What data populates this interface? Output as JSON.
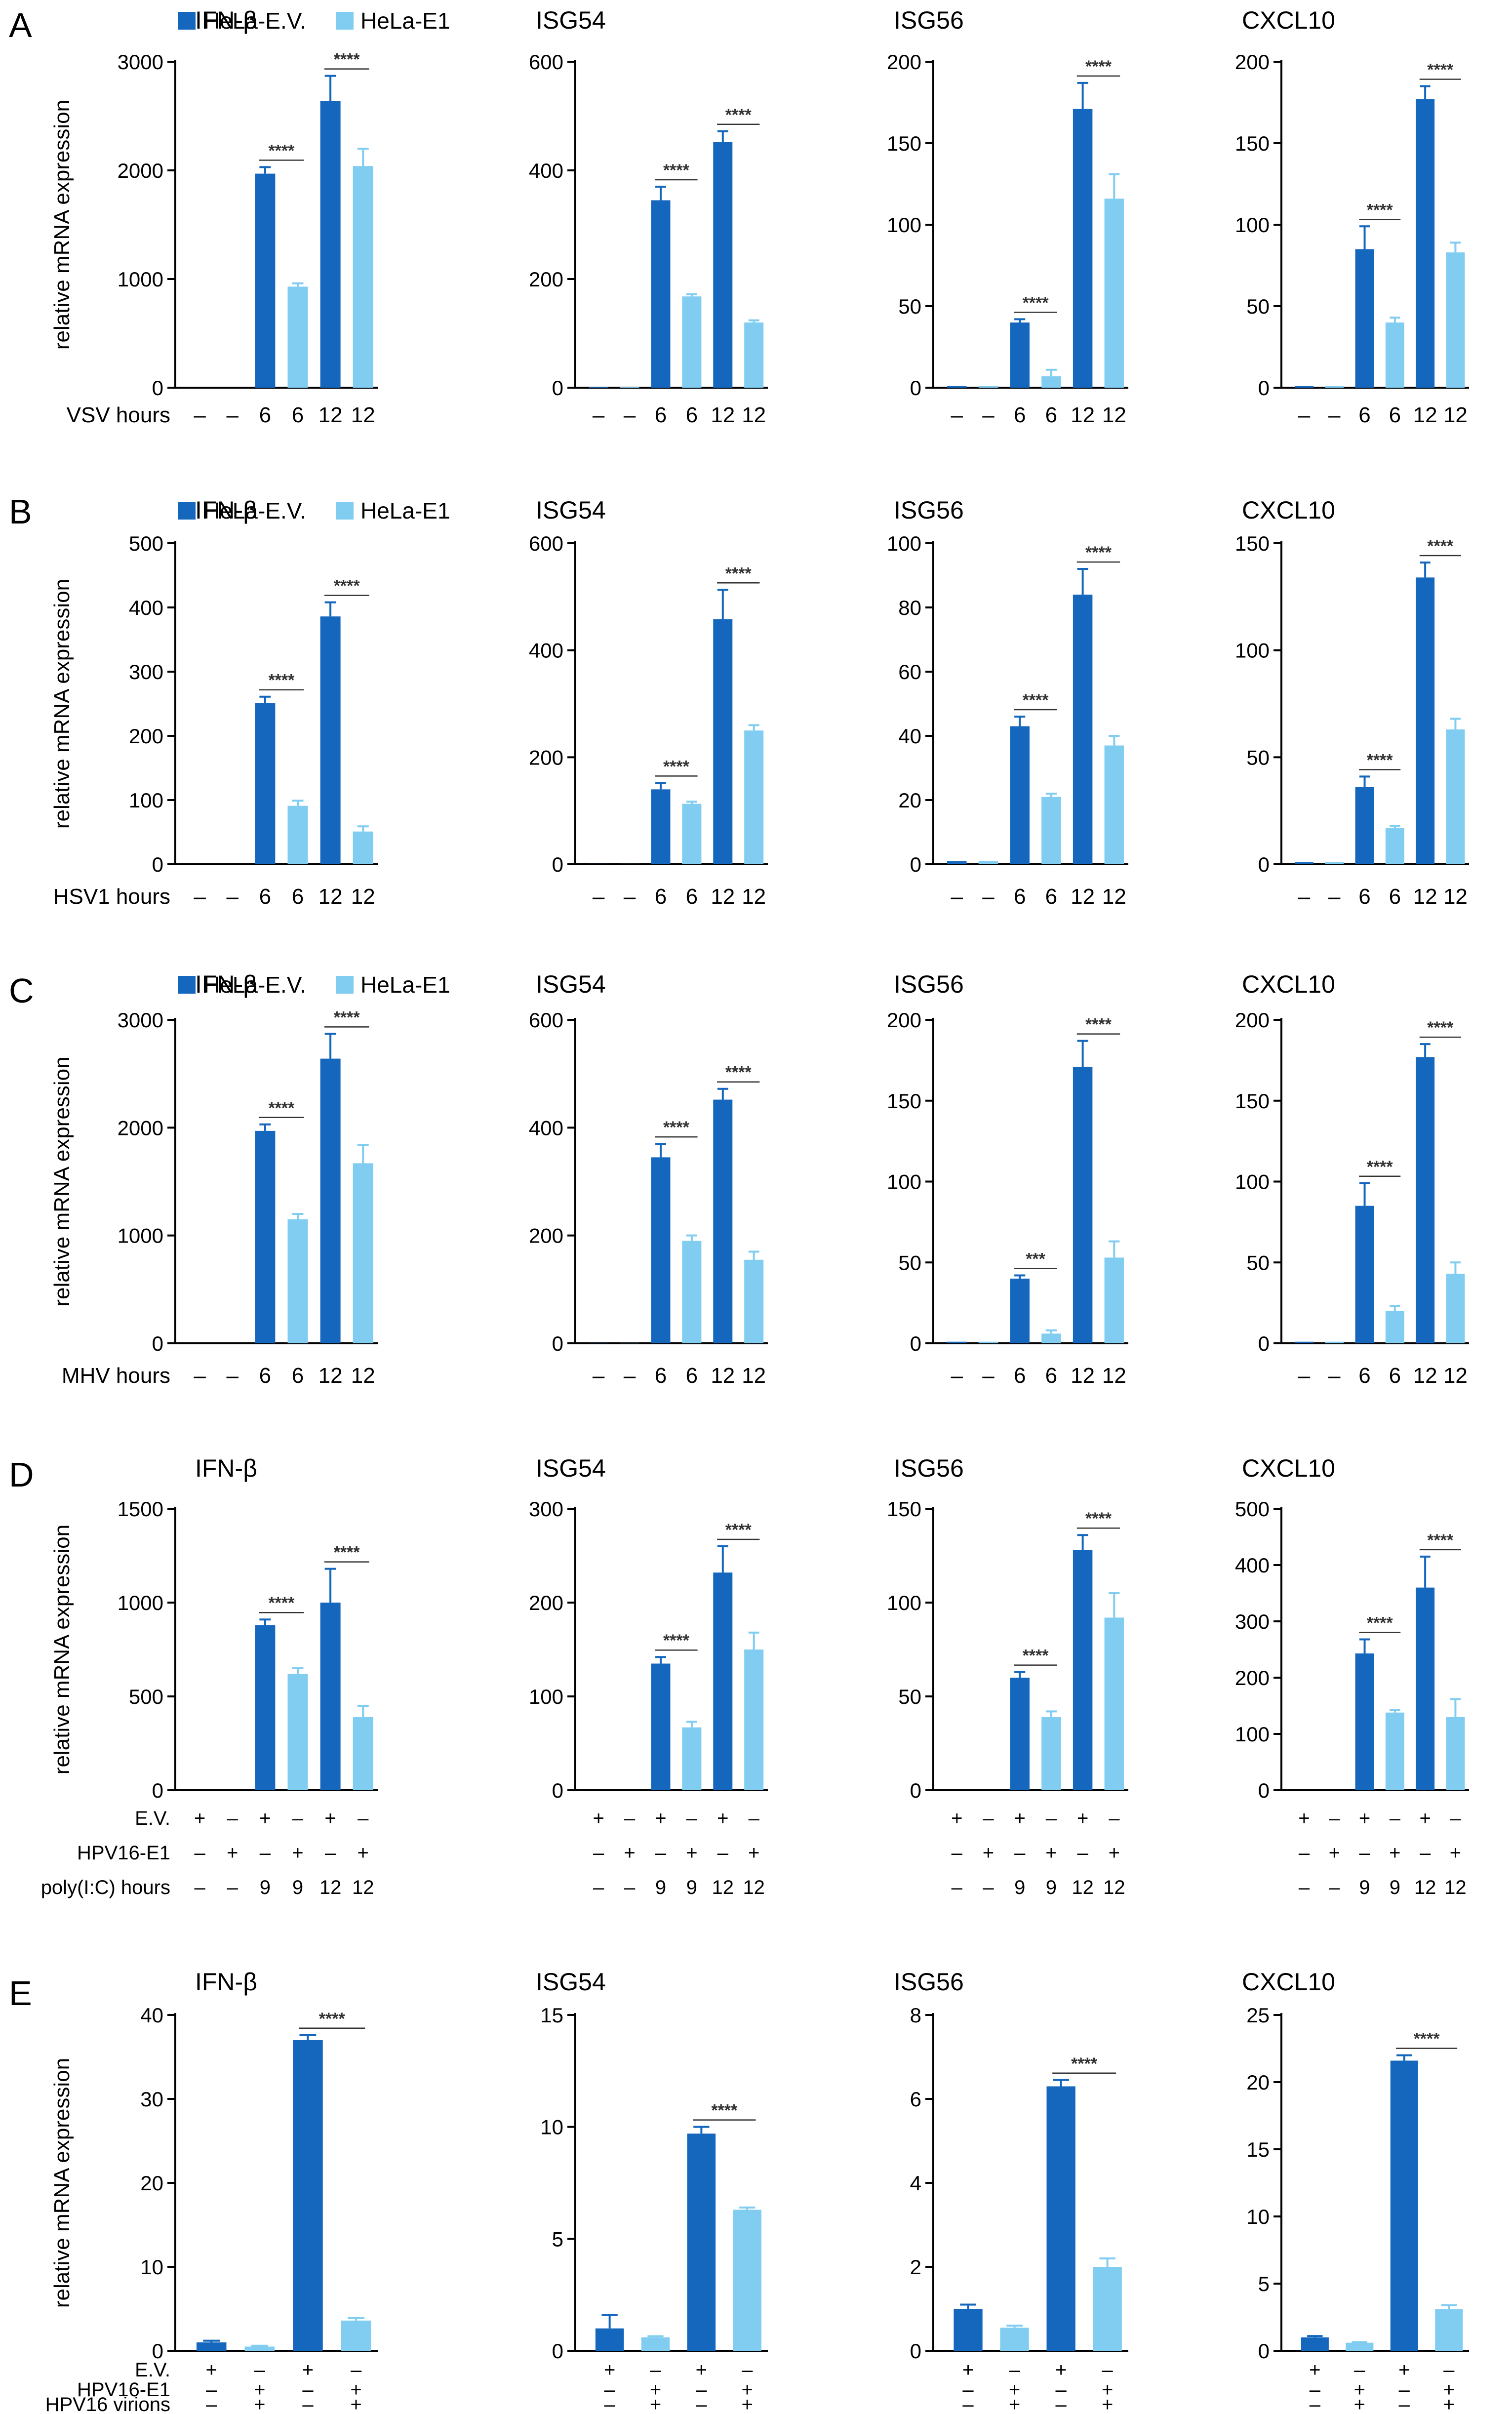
{
  "figure": {
    "legend": {
      "ev": "HeLa-E.V.",
      "e1": "HeLa-E1"
    },
    "y_axis_label": "relative mRNA expression",
    "colors": {
      "ev": "#1467bd",
      "e1": "#81cdf1",
      "axis": "#000000",
      "sig": "#333333"
    }
  },
  "chart_data": [
    {
      "panel": "A",
      "treatment": "VSV hours",
      "cond": [
        "–",
        "–",
        "6",
        "6",
        "12",
        "12"
      ],
      "charts": [
        {
          "type": "bar",
          "title": "IFN-β",
          "ylim": [
            0,
            3000
          ],
          "ticks": [
            0,
            1000,
            2000,
            3000
          ],
          "values": [
            0,
            0,
            1970,
            930,
            2640,
            2040
          ],
          "errors": [
            0,
            0,
            60,
            30,
            230,
            160
          ],
          "sig": [
            {
              "pair": [
                2,
                3
              ],
              "label": "****"
            },
            {
              "pair": [
                4,
                5
              ],
              "label": "****"
            }
          ]
        },
        {
          "type": "bar",
          "title": "ISG54",
          "ylim": [
            0,
            600
          ],
          "ticks": [
            0,
            200,
            400,
            600
          ],
          "values": [
            1,
            1,
            345,
            168,
            452,
            120
          ],
          "errors": [
            0,
            0,
            25,
            4,
            20,
            4
          ],
          "sig": [
            {
              "pair": [
                2,
                3
              ],
              "label": "****"
            },
            {
              "pair": [
                4,
                5
              ],
              "label": "****"
            }
          ]
        },
        {
          "type": "bar",
          "title": "ISG56",
          "ylim": [
            0,
            200
          ],
          "ticks": [
            0,
            50,
            100,
            150,
            200
          ],
          "values": [
            1,
            1,
            40,
            7,
            171,
            116
          ],
          "errors": [
            0,
            0,
            2,
            4,
            16,
            15
          ],
          "sig": [
            {
              "pair": [
                2,
                3
              ],
              "label": "****"
            },
            {
              "pair": [
                4,
                5
              ],
              "label": "****"
            }
          ]
        },
        {
          "type": "bar",
          "title": "CXCL10",
          "ylim": [
            0,
            200
          ],
          "ticks": [
            0,
            50,
            100,
            150,
            200
          ],
          "values": [
            1,
            1,
            85,
            40,
            177,
            83
          ],
          "errors": [
            0,
            0,
            14,
            3,
            8,
            6
          ],
          "sig": [
            {
              "pair": [
                2,
                3
              ],
              "label": "****"
            },
            {
              "pair": [
                4,
                5
              ],
              "label": "****"
            }
          ]
        }
      ]
    },
    {
      "panel": "B",
      "treatment": "HSV1 hours",
      "cond": [
        "–",
        "–",
        "6",
        "6",
        "12",
        "12"
      ],
      "charts": [
        {
          "type": "bar",
          "title": "IFN-β",
          "ylim": [
            0,
            500
          ],
          "ticks": [
            0,
            100,
            200,
            300,
            400,
            500
          ],
          "values": [
            0,
            0,
            251,
            91,
            386,
            51
          ],
          "errors": [
            0,
            0,
            10,
            8,
            22,
            8
          ],
          "sig": [
            {
              "pair": [
                2,
                3
              ],
              "label": "****"
            },
            {
              "pair": [
                4,
                5
              ],
              "label": "****"
            }
          ]
        },
        {
          "type": "bar",
          "title": "ISG54",
          "ylim": [
            0,
            600
          ],
          "ticks": [
            0,
            200,
            400,
            600
          ],
          "values": [
            1,
            1,
            140,
            113,
            458,
            250
          ],
          "errors": [
            0,
            0,
            12,
            4,
            55,
            10
          ],
          "sig": [
            {
              "pair": [
                2,
                3
              ],
              "label": "****"
            },
            {
              "pair": [
                4,
                5
              ],
              "label": "****"
            }
          ]
        },
        {
          "type": "bar",
          "title": "ISG56",
          "ylim": [
            0,
            100
          ],
          "ticks": [
            0,
            20,
            40,
            60,
            80,
            100
          ],
          "values": [
            1,
            1,
            43,
            21,
            84,
            37
          ],
          "errors": [
            0,
            0,
            3,
            1,
            8,
            3
          ],
          "sig": [
            {
              "pair": [
                2,
                3
              ],
              "label": "****"
            },
            {
              "pair": [
                4,
                5
              ],
              "label": "****"
            }
          ]
        },
        {
          "type": "bar",
          "title": "CXCL10",
          "ylim": [
            0,
            150
          ],
          "ticks": [
            0,
            50,
            100,
            150
          ],
          "values": [
            1,
            1,
            36,
            17,
            134,
            63
          ],
          "errors": [
            0,
            0,
            5,
            1,
            7,
            5
          ],
          "sig": [
            {
              "pair": [
                2,
                3
              ],
              "label": "****"
            },
            {
              "pair": [
                4,
                5
              ],
              "label": "****"
            }
          ]
        }
      ]
    },
    {
      "panel": "C",
      "treatment": "MHV hours",
      "cond": [
        "–",
        "–",
        "6",
        "6",
        "12",
        "12"
      ],
      "charts": [
        {
          "type": "bar",
          "title": "IFN-β",
          "ylim": [
            0,
            3000
          ],
          "ticks": [
            0,
            1000,
            2000,
            3000
          ],
          "values": [
            0,
            0,
            1970,
            1150,
            2640,
            1670
          ],
          "errors": [
            0,
            0,
            60,
            50,
            230,
            170
          ],
          "sig": [
            {
              "pair": [
                2,
                3
              ],
              "label": "****"
            },
            {
              "pair": [
                4,
                5
              ],
              "label": "****"
            }
          ]
        },
        {
          "type": "bar",
          "title": "ISG54",
          "ylim": [
            0,
            600
          ],
          "ticks": [
            0,
            200,
            400,
            600
          ],
          "values": [
            1,
            1,
            345,
            190,
            452,
            155
          ],
          "errors": [
            0,
            0,
            25,
            10,
            20,
            15
          ],
          "sig": [
            {
              "pair": [
                2,
                3
              ],
              "label": "****"
            },
            {
              "pair": [
                4,
                5
              ],
              "label": "****"
            }
          ]
        },
        {
          "type": "bar",
          "title": "ISG56",
          "ylim": [
            0,
            200
          ],
          "ticks": [
            0,
            50,
            100,
            150,
            200
          ],
          "values": [
            1,
            1,
            40,
            6,
            171,
            53
          ],
          "errors": [
            0,
            0,
            2,
            2,
            16,
            10
          ],
          "sig": [
            {
              "pair": [
                2,
                3
              ],
              "label": "***"
            },
            {
              "pair": [
                4,
                5
              ],
              "label": "****"
            }
          ]
        },
        {
          "type": "bar",
          "title": "CXCL10",
          "ylim": [
            0,
            200
          ],
          "ticks": [
            0,
            50,
            100,
            150,
            200
          ],
          "values": [
            1,
            1,
            85,
            20,
            177,
            43
          ],
          "errors": [
            0,
            0,
            14,
            3,
            8,
            7
          ],
          "sig": [
            {
              "pair": [
                2,
                3
              ],
              "label": "****"
            },
            {
              "pair": [
                4,
                5
              ],
              "label": "****"
            }
          ]
        }
      ]
    },
    {
      "panel": "D",
      "rows": [
        "E.V.",
        "HPV16-E1",
        "poly(I:C) hours"
      ],
      "cond_rows": [
        [
          "+",
          "–",
          "+",
          "–",
          "+",
          "–"
        ],
        [
          "–",
          "+",
          "–",
          "+",
          "–",
          "+"
        ],
        [
          "–",
          "–",
          "9",
          "9",
          "12",
          "12"
        ]
      ],
      "charts": [
        {
          "type": "bar",
          "title": "IFN-β",
          "ylim": [
            0,
            1500
          ],
          "ticks": [
            0,
            500,
            1000,
            1500
          ],
          "values": [
            0,
            0,
            880,
            620,
            1000,
            390
          ],
          "errors": [
            0,
            0,
            30,
            30,
            180,
            60
          ],
          "sig": [
            {
              "pair": [
                2,
                3
              ],
              "label": "****"
            },
            {
              "pair": [
                4,
                5
              ],
              "label": "****"
            }
          ]
        },
        {
          "type": "bar",
          "title": "ISG54",
          "ylim": [
            0,
            300
          ],
          "ticks": [
            0,
            100,
            200,
            300
          ],
          "values": [
            0,
            0,
            135,
            67,
            232,
            150
          ],
          "errors": [
            0,
            0,
            7,
            6,
            28,
            18
          ],
          "sig": [
            {
              "pair": [
                2,
                3
              ],
              "label": "****"
            },
            {
              "pair": [
                4,
                5
              ],
              "label": "****"
            }
          ]
        },
        {
          "type": "bar",
          "title": "ISG56",
          "ylim": [
            0,
            150
          ],
          "ticks": [
            0,
            50,
            100,
            150
          ],
          "values": [
            0,
            0,
            60,
            39,
            128,
            92
          ],
          "errors": [
            0,
            0,
            3,
            3,
            8,
            13
          ],
          "sig": [
            {
              "pair": [
                2,
                3
              ],
              "label": "****"
            },
            {
              "pair": [
                4,
                5
              ],
              "label": "****"
            }
          ]
        },
        {
          "type": "bar",
          "title": "CXCL10",
          "ylim": [
            0,
            500
          ],
          "ticks": [
            0,
            100,
            200,
            300,
            400,
            500
          ],
          "values": [
            0,
            0,
            243,
            138,
            360,
            130
          ],
          "errors": [
            0,
            0,
            25,
            5,
            55,
            32
          ],
          "sig": [
            {
              "pair": [
                2,
                3
              ],
              "label": "****"
            },
            {
              "pair": [
                4,
                5
              ],
              "label": "****"
            }
          ]
        }
      ]
    },
    {
      "panel": "E",
      "rows": [
        "E.V.",
        "HPV16-E1",
        "HPV16 virions"
      ],
      "cond_rows": [
        [
          "+",
          "–",
          "+",
          "–"
        ],
        [
          "–",
          "+",
          "–",
          "+"
        ],
        [
          "–",
          "+",
          "–",
          "+"
        ]
      ],
      "charts": [
        {
          "type": "bar",
          "title": "IFN-β",
          "ylim": [
            0,
            40
          ],
          "ticks": [
            0,
            10,
            20,
            30,
            40
          ],
          "values": [
            1,
            0.5,
            37,
            3.6
          ],
          "errors": [
            0.2,
            0.1,
            0.6,
            0.3
          ],
          "sig": [
            {
              "pair": [
                2,
                3
              ],
              "label": "****"
            }
          ]
        },
        {
          "type": "bar",
          "title": "ISG54",
          "ylim": [
            0,
            15
          ],
          "ticks": [
            0,
            5,
            10,
            15
          ],
          "values": [
            1,
            0.6,
            9.7,
            6.3
          ],
          "errors": [
            0.6,
            0.05,
            0.3,
            0.1
          ],
          "sig": [
            {
              "pair": [
                2,
                3
              ],
              "label": "****"
            }
          ]
        },
        {
          "type": "bar",
          "title": "ISG56",
          "ylim": [
            0,
            8
          ],
          "ticks": [
            0,
            2,
            4,
            6,
            8
          ],
          "values": [
            1,
            0.55,
            6.3,
            2
          ],
          "errors": [
            0.1,
            0.05,
            0.15,
            0.2
          ],
          "sig": [
            {
              "pair": [
                2,
                3
              ],
              "label": "****"
            }
          ]
        },
        {
          "type": "bar",
          "title": "CXCL10",
          "ylim": [
            0,
            25
          ],
          "ticks": [
            0,
            5,
            10,
            15,
            20,
            25
          ],
          "values": [
            1,
            0.6,
            21.6,
            3.1
          ],
          "errors": [
            0.1,
            0.05,
            0.4,
            0.3
          ],
          "sig": [
            {
              "pair": [
                2,
                3
              ],
              "label": "****"
            }
          ]
        }
      ]
    }
  ]
}
